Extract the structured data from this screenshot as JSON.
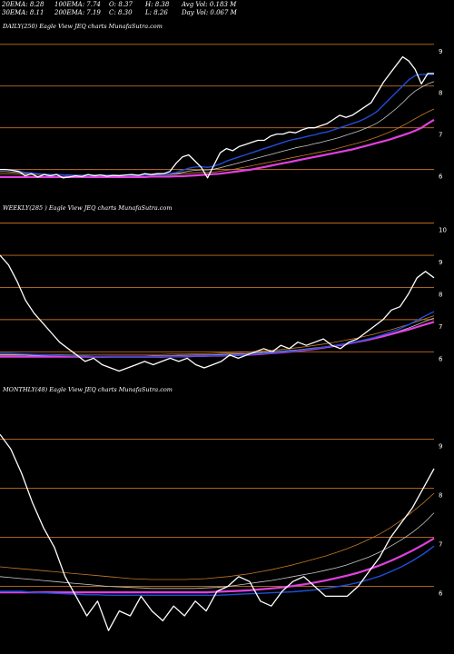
{
  "header": {
    "row1": [
      "20EMA: 8.28",
      "100EMA: 7.74",
      "O: 8.37",
      "H: 8.38",
      "Avg Vol: 0.183 M"
    ],
    "row2": [
      "30EMA: 8.11",
      "200EMA: 7.19",
      "C: 8.30",
      "L: 8.26",
      "Day Vol: 0.067 M"
    ]
  },
  "colors": {
    "background": "#000000",
    "price": "#ffffff",
    "ema_fast": "#1e4fd8",
    "ema_mid": "#c8c8c8",
    "ema_slow": "#c77a2a",
    "ema_long": "#e040e0",
    "level_line": "#c07020"
  },
  "chart_data": [
    {
      "type": "line",
      "title": "DAILY(250) Eagle  View  JEQ charts MunafaSutra.com",
      "price_levels": [
        9,
        8,
        7,
        6
      ],
      "ylim": [
        5.6,
        9.3
      ],
      "series": [
        {
          "name": "",
          "role": "price",
          "values": [
            6.0,
            6.0,
            5.98,
            5.95,
            5.85,
            5.9,
            5.82,
            5.88,
            5.85,
            5.88,
            5.8,
            5.82,
            5.85,
            5.83,
            5.88,
            5.85,
            5.87,
            5.84,
            5.86,
            5.85,
            5.87,
            5.88,
            5.86,
            5.9,
            5.88,
            5.9,
            5.9,
            5.95,
            6.15,
            6.3,
            6.35,
            6.2,
            6.05,
            5.8,
            6.1,
            6.4,
            6.5,
            6.45,
            6.55,
            6.6,
            6.65,
            6.7,
            6.7,
            6.8,
            6.85,
            6.85,
            6.9,
            6.88,
            6.95,
            7.0,
            7.0,
            7.05,
            7.1,
            7.2,
            7.3,
            7.25,
            7.3,
            7.4,
            7.5,
            7.6,
            7.85,
            8.1,
            8.3,
            8.5,
            8.7,
            8.6,
            8.4,
            8.05,
            8.3,
            8.3
          ]
        },
        {
          "name": "",
          "role": "ema_fast",
          "values": [
            6.0,
            6.0,
            5.98,
            5.96,
            5.93,
            5.92,
            5.9,
            5.89,
            5.88,
            5.88,
            5.87,
            5.86,
            5.86,
            5.86,
            5.86,
            5.86,
            5.86,
            5.86,
            5.86,
            5.86,
            5.86,
            5.87,
            5.87,
            5.87,
            5.88,
            5.88,
            5.89,
            5.9,
            5.93,
            5.98,
            6.03,
            6.06,
            6.07,
            6.05,
            6.08,
            6.13,
            6.2,
            6.25,
            6.3,
            6.35,
            6.4,
            6.45,
            6.5,
            6.55,
            6.6,
            6.65,
            6.7,
            6.73,
            6.76,
            6.8,
            6.83,
            6.87,
            6.9,
            6.95,
            7.0,
            7.05,
            7.1,
            7.15,
            7.22,
            7.3,
            7.4,
            7.55,
            7.7,
            7.85,
            8.0,
            8.15,
            8.25,
            8.28,
            8.28,
            8.28
          ]
        },
        {
          "name": "",
          "role": "ema_mid",
          "values": [
            5.95,
            5.95,
            5.94,
            5.93,
            5.92,
            5.91,
            5.9,
            5.89,
            5.88,
            5.88,
            5.87,
            5.87,
            5.86,
            5.86,
            5.86,
            5.86,
            5.86,
            5.86,
            5.86,
            5.86,
            5.86,
            5.86,
            5.86,
            5.87,
            5.87,
            5.87,
            5.88,
            5.88,
            5.9,
            5.93,
            5.96,
            5.98,
            5.99,
            5.99,
            6.01,
            6.04,
            6.08,
            6.12,
            6.16,
            6.2,
            6.24,
            6.28,
            6.32,
            6.36,
            6.4,
            6.44,
            6.48,
            6.52,
            6.55,
            6.58,
            6.62,
            6.65,
            6.69,
            6.73,
            6.77,
            6.82,
            6.87,
            6.92,
            6.98,
            7.04,
            7.12,
            7.22,
            7.34,
            7.46,
            7.6,
            7.75,
            7.88,
            7.97,
            8.05,
            8.11
          ]
        },
        {
          "name": "",
          "role": "ema_slow",
          "values": [
            5.9,
            5.9,
            5.9,
            5.89,
            5.89,
            5.88,
            5.88,
            5.88,
            5.87,
            5.87,
            5.87,
            5.87,
            5.87,
            5.87,
            5.87,
            5.87,
            5.87,
            5.87,
            5.87,
            5.87,
            5.87,
            5.87,
            5.87,
            5.87,
            5.88,
            5.88,
            5.88,
            5.88,
            5.89,
            5.9,
            5.91,
            5.92,
            5.93,
            5.93,
            5.94,
            5.96,
            5.98,
            6.0,
            6.03,
            6.06,
            6.09,
            6.12,
            6.15,
            6.18,
            6.21,
            6.24,
            6.27,
            6.3,
            6.33,
            6.36,
            6.39,
            6.42,
            6.45,
            6.48,
            6.52,
            6.56,
            6.6,
            6.64,
            6.68,
            6.73,
            6.78,
            6.84,
            6.9,
            6.97,
            7.05,
            7.13,
            7.22,
            7.3,
            7.38,
            7.45
          ]
        },
        {
          "name": "",
          "role": "ema_long",
          "values": [
            5.82,
            5.82,
            5.82,
            5.82,
            5.82,
            5.82,
            5.82,
            5.82,
            5.82,
            5.82,
            5.82,
            5.82,
            5.82,
            5.82,
            5.82,
            5.82,
            5.82,
            5.82,
            5.82,
            5.82,
            5.82,
            5.82,
            5.82,
            5.82,
            5.83,
            5.83,
            5.83,
            5.83,
            5.84,
            5.84,
            5.85,
            5.86,
            5.87,
            5.88,
            5.89,
            5.9,
            5.92,
            5.94,
            5.96,
            5.98,
            6.0,
            6.03,
            6.06,
            6.09,
            6.12,
            6.15,
            6.18,
            6.21,
            6.24,
            6.27,
            6.3,
            6.33,
            6.36,
            6.39,
            6.42,
            6.45,
            6.48,
            6.52,
            6.56,
            6.6,
            6.64,
            6.68,
            6.72,
            6.77,
            6.82,
            6.87,
            6.93,
            7.0,
            7.1,
            7.19
          ]
        }
      ]
    },
    {
      "type": "line",
      "title": "WEEKLY(285             ) Eagle   View  JEQ charts MunafaSutra.com",
      "price_levels": [
        10,
        9,
        8,
        7,
        6
      ],
      "ylim": [
        5.5,
        10.3
      ],
      "series": [
        {
          "name": "",
          "role": "price",
          "values": [
            9.0,
            8.7,
            8.2,
            7.6,
            7.2,
            6.9,
            6.6,
            6.3,
            6.1,
            5.9,
            5.7,
            5.8,
            5.6,
            5.5,
            5.4,
            5.5,
            5.6,
            5.7,
            5.6,
            5.7,
            5.8,
            5.7,
            5.8,
            5.6,
            5.5,
            5.6,
            5.7,
            5.9,
            5.8,
            5.9,
            6.0,
            6.1,
            6.0,
            6.2,
            6.1,
            6.3,
            6.2,
            6.3,
            6.4,
            6.2,
            6.1,
            6.3,
            6.4,
            6.6,
            6.8,
            7.0,
            7.3,
            7.4,
            7.8,
            8.3,
            8.5,
            8.3
          ]
        },
        {
          "name": "",
          "role": "ema_fast",
          "values": [
            5.95,
            5.95,
            5.94,
            5.93,
            5.92,
            5.91,
            5.9,
            5.89,
            5.88,
            5.87,
            5.87,
            5.86,
            5.86,
            5.85,
            5.85,
            5.85,
            5.85,
            5.85,
            5.85,
            5.86,
            5.86,
            5.86,
            5.87,
            5.87,
            5.87,
            5.88,
            5.88,
            5.89,
            5.9,
            5.91,
            5.93,
            5.95,
            5.97,
            5.99,
            6.01,
            6.04,
            6.07,
            6.1,
            6.14,
            6.18,
            6.22,
            6.27,
            6.32,
            6.38,
            6.45,
            6.53,
            6.62,
            6.72,
            6.84,
            6.98,
            7.12,
            7.25
          ]
        },
        {
          "name": "",
          "role": "ema_mid",
          "values": [
            5.9,
            5.9,
            5.9,
            5.9,
            5.89,
            5.89,
            5.89,
            5.88,
            5.88,
            5.88,
            5.88,
            5.87,
            5.87,
            5.87,
            5.87,
            5.87,
            5.87,
            5.87,
            5.88,
            5.88,
            5.88,
            5.89,
            5.89,
            5.9,
            5.9,
            5.91,
            5.92,
            5.93,
            5.94,
            5.95,
            5.97,
            5.98,
            6.0,
            6.02,
            6.04,
            6.06,
            6.09,
            6.12,
            6.15,
            6.19,
            6.23,
            6.27,
            6.32,
            6.37,
            6.43,
            6.5,
            6.57,
            6.65,
            6.74,
            6.84,
            6.95,
            7.05
          ]
        },
        {
          "name": "",
          "role": "ema_slow",
          "values": [
            5.92,
            5.92,
            5.92,
            5.92,
            5.92,
            5.92,
            5.92,
            5.92,
            5.92,
            5.92,
            5.92,
            5.92,
            5.92,
            5.92,
            5.92,
            5.92,
            5.92,
            5.92,
            5.92,
            5.92,
            5.93,
            5.93,
            5.93,
            5.94,
            5.94,
            5.95,
            5.96,
            5.97,
            5.98,
            5.99,
            6.01,
            6.03,
            6.05,
            6.07,
            6.1,
            6.13,
            6.16,
            6.2,
            6.24,
            6.28,
            6.33,
            6.38,
            6.43,
            6.49,
            6.55,
            6.62,
            6.69,
            6.77,
            6.85,
            6.94,
            7.03,
            7.12
          ]
        },
        {
          "name": "",
          "role": "ema_long",
          "values": [
            5.85,
            5.85,
            5.85,
            5.85,
            5.85,
            5.85,
            5.85,
            5.85,
            5.85,
            5.85,
            5.85,
            5.85,
            5.85,
            5.85,
            5.85,
            5.85,
            5.85,
            5.85,
            5.85,
            5.85,
            5.86,
            5.86,
            5.86,
            5.87,
            5.87,
            5.88,
            5.88,
            5.89,
            5.9,
            5.91,
            5.92,
            5.94,
            5.96,
            5.98,
            6.0,
            6.03,
            6.06,
            6.09,
            6.13,
            6.17,
            6.21,
            6.26,
            6.31,
            6.36,
            6.42,
            6.48,
            6.55,
            6.62,
            6.69,
            6.77,
            6.85,
            6.93
          ]
        }
      ]
    },
    {
      "type": "line",
      "title": "MONTHLY(48) Eagle   View  JEQ charts MunafaSutra.com",
      "price_levels": [
        9,
        8,
        7,
        6
      ],
      "ylim": [
        4.9,
        9.9
      ],
      "series": [
        {
          "name": "",
          "role": "price",
          "values": [
            9.1,
            8.8,
            8.3,
            7.7,
            7.2,
            6.8,
            6.2,
            5.8,
            5.4,
            5.7,
            5.1,
            5.5,
            5.4,
            5.8,
            5.5,
            5.3,
            5.6,
            5.4,
            5.7,
            5.5,
            5.9,
            6.0,
            6.2,
            6.1,
            5.7,
            5.6,
            5.9,
            6.1,
            6.2,
            6.0,
            5.8,
            5.8,
            5.8,
            6.0,
            6.3,
            6.6,
            7.0,
            7.3,
            7.6,
            8.0,
            8.4
          ]
        },
        {
          "name": "",
          "role": "ema_fast",
          "values": [
            5.9,
            5.9,
            5.9,
            5.88,
            5.87,
            5.86,
            5.85,
            5.84,
            5.83,
            5.83,
            5.82,
            5.82,
            5.82,
            5.82,
            5.82,
            5.82,
            5.82,
            5.82,
            5.82,
            5.82,
            5.82,
            5.83,
            5.84,
            5.85,
            5.86,
            5.87,
            5.88,
            5.89,
            5.91,
            5.93,
            5.96,
            5.99,
            6.03,
            6.08,
            6.14,
            6.21,
            6.3,
            6.4,
            6.52,
            6.66,
            6.82
          ]
        },
        {
          "name": "",
          "role": "ema_mid",
          "values": [
            6.2,
            6.18,
            6.16,
            6.14,
            6.12,
            6.1,
            6.08,
            6.06,
            6.04,
            6.02,
            6.0,
            5.99,
            5.98,
            5.97,
            5.96,
            5.96,
            5.96,
            5.96,
            5.96,
            5.97,
            5.98,
            6.0,
            6.03,
            6.06,
            6.09,
            6.12,
            6.16,
            6.2,
            6.24,
            6.28,
            6.33,
            6.38,
            6.44,
            6.52,
            6.6,
            6.7,
            6.82,
            6.95,
            7.1,
            7.28,
            7.5
          ]
        },
        {
          "name": "",
          "role": "ema_slow",
          "values": [
            6.4,
            6.38,
            6.36,
            6.34,
            6.32,
            6.3,
            6.28,
            6.26,
            6.24,
            6.22,
            6.2,
            6.18,
            6.16,
            6.15,
            6.14,
            6.14,
            6.14,
            6.14,
            6.15,
            6.16,
            6.18,
            6.2,
            6.23,
            6.26,
            6.3,
            6.34,
            6.39,
            6.44,
            6.5,
            6.56,
            6.62,
            6.69,
            6.77,
            6.86,
            6.96,
            7.07,
            7.2,
            7.35,
            7.52,
            7.7,
            7.9
          ]
        },
        {
          "name": "",
          "role": "ema_long",
          "values": [
            5.88,
            5.88,
            5.88,
            5.88,
            5.88,
            5.88,
            5.88,
            5.88,
            5.88,
            5.88,
            5.88,
            5.88,
            5.88,
            5.88,
            5.88,
            5.88,
            5.88,
            5.88,
            5.88,
            5.88,
            5.89,
            5.9,
            5.91,
            5.92,
            5.94,
            5.96,
            5.98,
            6.01,
            6.04,
            6.08,
            6.12,
            6.17,
            6.22,
            6.28,
            6.35,
            6.43,
            6.52,
            6.62,
            6.73,
            6.85,
            6.98
          ]
        }
      ]
    }
  ]
}
